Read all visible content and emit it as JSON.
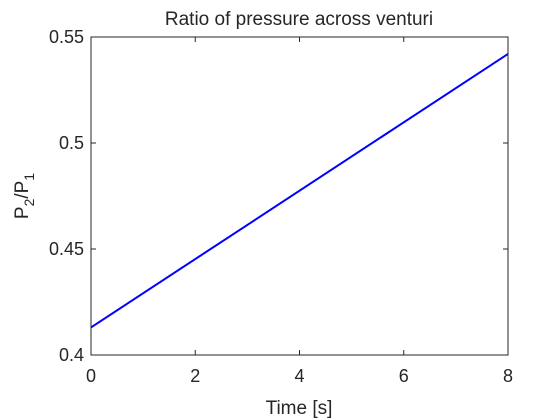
{
  "chart_data": {
    "type": "line",
    "title": "Ratio of pressure across venturi",
    "xlabel": "Time [s]",
    "ylabel": {
      "base1": "P",
      "sub1": "2",
      "slash": "/P",
      "sub2": "1"
    },
    "xlim": [
      0,
      8
    ],
    "ylim": [
      0.4,
      0.55
    ],
    "xticks": [
      0,
      2,
      4,
      6,
      8
    ],
    "xtick_labels": [
      "0",
      "2",
      "4",
      "6",
      "8"
    ],
    "yticks": [
      0.4,
      0.45,
      0.5,
      0.55
    ],
    "ytick_labels": [
      "0.4",
      "0.45",
      "0.5",
      "0.55"
    ],
    "grid": false,
    "series": [
      {
        "color": "#0000ff",
        "x": [
          0,
          8
        ],
        "y": [
          0.413,
          0.542
        ]
      }
    ]
  }
}
